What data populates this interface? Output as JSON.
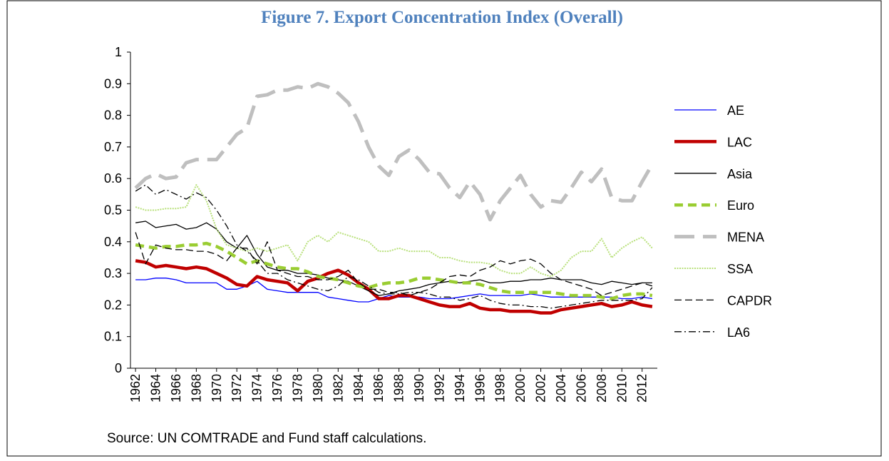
{
  "chart_data": {
    "type": "line",
    "title": "Figure 7. Export Concentration Index (Overall)",
    "source": "Source: UN COMTRADE and Fund staff calculations.",
    "x": [
      1962,
      1963,
      1964,
      1965,
      1966,
      1967,
      1968,
      1969,
      1970,
      1971,
      1972,
      1973,
      1974,
      1975,
      1976,
      1977,
      1978,
      1979,
      1980,
      1981,
      1982,
      1983,
      1984,
      1985,
      1986,
      1987,
      1988,
      1989,
      1990,
      1991,
      1992,
      1993,
      1994,
      1995,
      1996,
      1997,
      1998,
      1999,
      2000,
      2001,
      2002,
      2003,
      2004,
      2005,
      2006,
      2007,
      2008,
      2009,
      2010,
      2011,
      2012,
      2013
    ],
    "xlim": [
      1962,
      2013
    ],
    "xticks": [
      1962,
      1964,
      1966,
      1968,
      1970,
      1972,
      1974,
      1976,
      1978,
      1980,
      1982,
      1984,
      1986,
      1988,
      1990,
      1992,
      1994,
      1996,
      1998,
      2000,
      2002,
      2004,
      2006,
      2008,
      2010,
      2012
    ],
    "ylim": [
      0,
      1
    ],
    "yticks": [
      0,
      0.1,
      0.2,
      0.3,
      0.4,
      0.5,
      0.6,
      0.7,
      0.8,
      0.9,
      1
    ],
    "legend": "right",
    "series": [
      {
        "name": "AE",
        "color": "#0000ff",
        "values": [
          0.28,
          0.28,
          0.285,
          0.285,
          0.28,
          0.27,
          0.27,
          0.27,
          0.27,
          0.25,
          0.25,
          0.26,
          0.275,
          0.25,
          0.245,
          0.24,
          0.24,
          0.24,
          0.24,
          0.225,
          0.22,
          0.215,
          0.21,
          0.21,
          0.22,
          0.23,
          0.225,
          0.225,
          0.225,
          0.22,
          0.22,
          0.22,
          0.225,
          0.23,
          0.235,
          0.23,
          0.23,
          0.23,
          0.23,
          0.235,
          0.23,
          0.225,
          0.225,
          0.225,
          0.225,
          0.225,
          0.225,
          0.225,
          0.22,
          0.22,
          0.225,
          0.22
        ]
      },
      {
        "name": "LAC",
        "color": "#c00000",
        "values": [
          0.34,
          0.335,
          0.32,
          0.325,
          0.32,
          0.315,
          0.32,
          0.315,
          0.3,
          0.285,
          0.265,
          0.26,
          0.29,
          0.28,
          0.275,
          0.27,
          0.245,
          0.275,
          0.285,
          0.3,
          0.31,
          0.295,
          0.27,
          0.25,
          0.22,
          0.22,
          0.23,
          0.23,
          0.22,
          0.21,
          0.2,
          0.195,
          0.195,
          0.205,
          0.19,
          0.185,
          0.185,
          0.18,
          0.18,
          0.18,
          0.175,
          0.175,
          0.185,
          0.19,
          0.195,
          0.2,
          0.205,
          0.195,
          0.2,
          0.21,
          0.2,
          0.195
        ]
      },
      {
        "name": "Asia",
        "color": "#000000",
        "values": [
          0.46,
          0.465,
          0.445,
          0.45,
          0.455,
          0.44,
          0.445,
          0.46,
          0.44,
          0.4,
          0.38,
          0.42,
          0.36,
          0.32,
          0.31,
          0.31,
          0.3,
          0.3,
          0.295,
          0.285,
          0.28,
          0.275,
          0.26,
          0.245,
          0.23,
          0.235,
          0.245,
          0.25,
          0.255,
          0.265,
          0.27,
          0.275,
          0.27,
          0.275,
          0.28,
          0.27,
          0.27,
          0.275,
          0.275,
          0.28,
          0.28,
          0.285,
          0.28,
          0.28,
          0.28,
          0.27,
          0.265,
          0.275,
          0.27,
          0.265,
          0.27,
          0.27
        ]
      },
      {
        "name": "Euro",
        "color": "#9acd32",
        "values": [
          0.39,
          0.385,
          0.38,
          0.385,
          0.385,
          0.39,
          0.39,
          0.395,
          0.385,
          0.37,
          0.35,
          0.33,
          0.34,
          0.33,
          0.32,
          0.315,
          0.315,
          0.305,
          0.29,
          0.285,
          0.28,
          0.27,
          0.26,
          0.255,
          0.265,
          0.27,
          0.27,
          0.275,
          0.285,
          0.285,
          0.28,
          0.275,
          0.27,
          0.27,
          0.265,
          0.255,
          0.245,
          0.24,
          0.24,
          0.24,
          0.24,
          0.24,
          0.235,
          0.23,
          0.23,
          0.23,
          0.225,
          0.22,
          0.23,
          0.235,
          0.235,
          0.23
        ]
      },
      {
        "name": "MENA",
        "color": "#bfbfbf",
        "values": [
          0.57,
          0.6,
          0.615,
          0.6,
          0.605,
          0.65,
          0.66,
          0.66,
          0.66,
          0.7,
          0.74,
          0.76,
          0.86,
          0.865,
          0.88,
          0.88,
          0.89,
          0.885,
          0.9,
          0.89,
          0.87,
          0.84,
          0.78,
          0.7,
          0.64,
          0.61,
          0.67,
          0.69,
          0.66,
          0.62,
          0.615,
          0.57,
          0.54,
          0.59,
          0.55,
          0.47,
          0.53,
          0.57,
          0.61,
          0.55,
          0.51,
          0.53,
          0.525,
          0.57,
          0.62,
          0.59,
          0.63,
          0.54,
          0.53,
          0.53,
          0.59,
          0.645
        ]
      },
      {
        "name": "SSA",
        "color": "#b8e07a",
        "values": [
          0.51,
          0.5,
          0.5,
          0.505,
          0.505,
          0.51,
          0.58,
          0.53,
          0.44,
          0.39,
          0.38,
          0.37,
          0.38,
          0.37,
          0.38,
          0.39,
          0.34,
          0.4,
          0.42,
          0.4,
          0.43,
          0.42,
          0.41,
          0.4,
          0.37,
          0.37,
          0.38,
          0.37,
          0.37,
          0.37,
          0.35,
          0.35,
          0.34,
          0.335,
          0.335,
          0.33,
          0.31,
          0.3,
          0.3,
          0.32,
          0.3,
          0.29,
          0.31,
          0.35,
          0.37,
          0.37,
          0.41,
          0.35,
          0.38,
          0.4,
          0.415,
          0.38
        ]
      },
      {
        "name": "CAPDR",
        "color": "#000000",
        "values": [
          0.43,
          0.33,
          0.39,
          0.38,
          0.375,
          0.375,
          0.37,
          0.37,
          0.36,
          0.34,
          0.38,
          0.38,
          0.33,
          0.4,
          0.31,
          0.3,
          0.29,
          0.29,
          0.28,
          0.28,
          0.29,
          0.31,
          0.27,
          0.25,
          0.25,
          0.24,
          0.24,
          0.23,
          0.24,
          0.25,
          0.27,
          0.29,
          0.295,
          0.29,
          0.31,
          0.32,
          0.34,
          0.33,
          0.34,
          0.345,
          0.33,
          0.3,
          0.28,
          0.27,
          0.26,
          0.25,
          0.23,
          0.24,
          0.25,
          0.26,
          0.27,
          0.26
        ]
      },
      {
        "name": "LA6",
        "color": "#000000",
        "values": [
          0.56,
          0.58,
          0.55,
          0.565,
          0.55,
          0.535,
          0.555,
          0.54,
          0.5,
          0.45,
          0.39,
          0.37,
          0.34,
          0.3,
          0.3,
          0.28,
          0.27,
          0.26,
          0.25,
          0.245,
          0.26,
          0.29,
          0.28,
          0.26,
          0.24,
          0.235,
          0.235,
          0.24,
          0.24,
          0.235,
          0.225,
          0.225,
          0.215,
          0.22,
          0.23,
          0.215,
          0.205,
          0.2,
          0.2,
          0.195,
          0.195,
          0.19,
          0.195,
          0.2,
          0.205,
          0.21,
          0.215,
          0.215,
          0.215,
          0.215,
          0.22,
          0.255
        ]
      }
    ]
  }
}
